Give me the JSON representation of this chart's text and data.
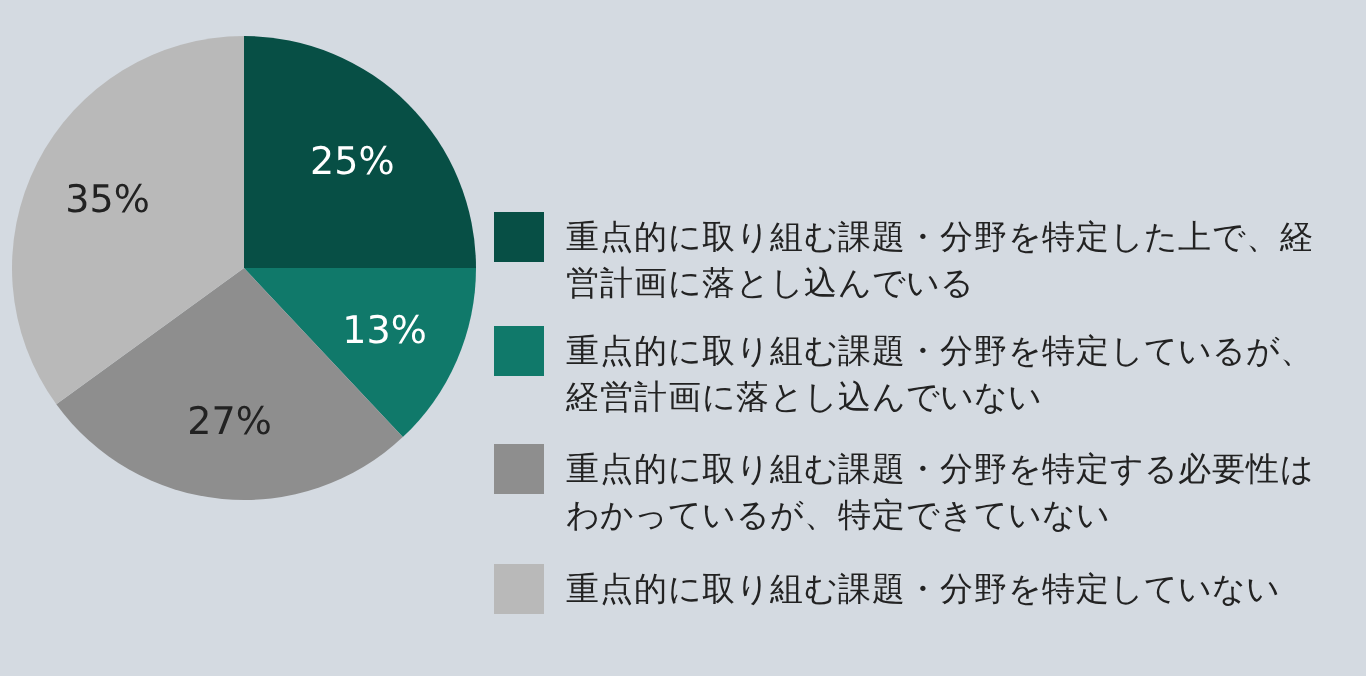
{
  "chart_data": {
    "type": "pie",
    "categories": [
      "重点的に取り組む課題・分野を特定した上で、経営計画に落とし込んでいる",
      "重点的に取り組む課題・分野を特定しているが、経営計画に落とし込んでいない",
      "重点的に取り組む課題・分野を特定する必要性はわかっているが、特定できていない",
      "重点的に取り組む課題・分野を特定していない"
    ],
    "values": [
      25,
      13,
      27,
      35
    ],
    "value_labels": [
      "25%",
      "13%",
      "27%",
      "35%"
    ],
    "colors": [
      "#074f45",
      "#10796a",
      "#8e8e8e",
      "#b9b9b9"
    ],
    "legend": "right"
  }
}
